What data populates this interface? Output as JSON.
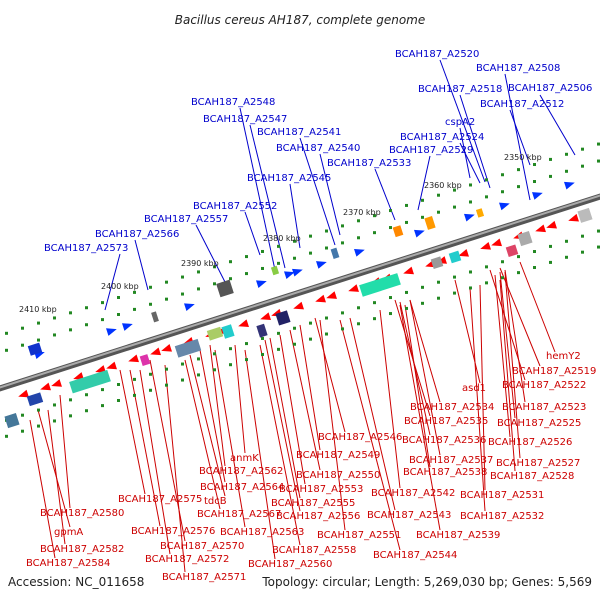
{
  "title": "Bacillus cereus AH187, complete genome",
  "footer": {
    "accession": "Accession: NC_011658",
    "summary": "Topology: circular; Length: 5,269,030 bp; Genes: 5,569"
  },
  "colors": {
    "upper_label": "#0000cc",
    "lower_label": "#cc0000",
    "forward_gene": "#0033ff",
    "reverse_gene": "#ff0000",
    "backbone": "#777777",
    "tick": "#228822"
  },
  "ticks": [
    "2350 kbp",
    "2360 kbp",
    "2370 kbp",
    "2380 kbp",
    "2390 kbp",
    "2400 kbp",
    "2410 kbp"
  ],
  "upper_labels": [
    "BCAH187_A2520",
    "BCAH187_A2508",
    "BCAH187_A2518",
    "BCAH187_A2506",
    "BCAH187_A2548",
    "BCAH187_A2512",
    "BCAH187_A2547",
    "cspA2",
    "BCAH187_A2541",
    "BCAH187_A2524",
    "BCAH187_A2540",
    "BCAH187_A2529",
    "BCAH187_A2533",
    "BCAH187_A2545",
    "BCAH187_A2552",
    "BCAH187_A2557",
    "BCAH187_A2566",
    "BCAH187_A2573"
  ],
  "lower_labels": [
    "hemY2",
    "BCAH187_A2519",
    "asd1",
    "BCAH187_A2522",
    "BCAH187_A2534",
    "BCAH187_A2523",
    "BCAH187_A2535",
    "BCAH187_A2525",
    "BCAH187_A2546",
    "BCAH187_A2536",
    "BCAH187_A2526",
    "anmK",
    "BCAH187_A2549",
    "BCAH187_A2537",
    "BCAH187_A2527",
    "BCAH187_A2562",
    "BCAH187_A2550",
    "BCAH187_A2538",
    "BCAH187_A2528",
    "BCAH187_A2564",
    "BCAH187_A2553",
    "BCAH187_A2542",
    "BCAH187_A2575",
    "tdcB",
    "BCAH187_A2555",
    "BCAH187_A2531",
    "BCAH187_A2580",
    "BCAH187_A2567",
    "BCAH187_A2556",
    "BCAH187_A2543",
    "BCAH187_A2532",
    "gpmA",
    "BCAH187_A2576",
    "BCAH187_A2563",
    "BCAH187_A2551",
    "BCAH187_A2539",
    "BCAH187_A2582",
    "BCAH187_A2570",
    "BCAH187_A2558",
    "BCAH187_A2584",
    "BCAH187_A2572",
    "BCAH187_A2560",
    "BCAH187_A2544",
    "BCAH187_A2571"
  ]
}
